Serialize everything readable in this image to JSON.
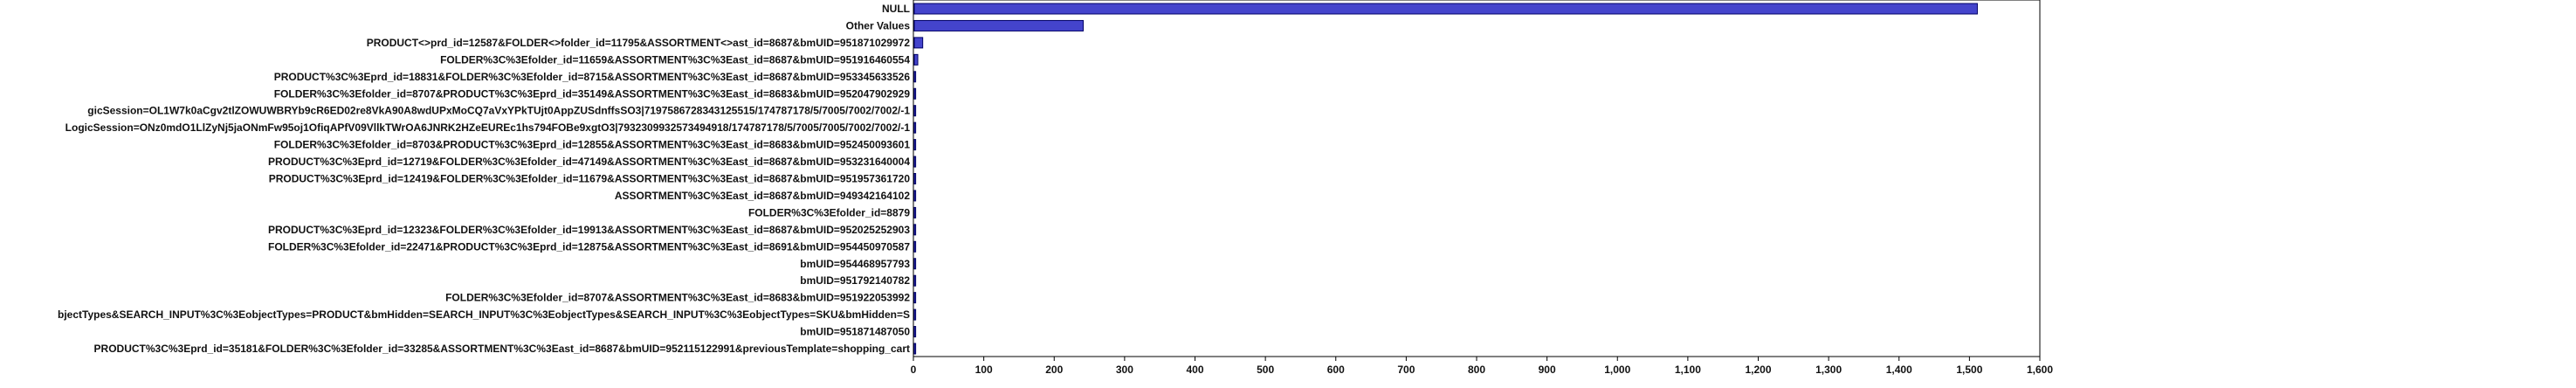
{
  "chart_data": {
    "type": "bar",
    "orientation": "horizontal",
    "title": "",
    "xlabel": "",
    "ylabel": "",
    "xlim": [
      0,
      1600
    ],
    "x_ticks": [
      0,
      100,
      200,
      300,
      400,
      500,
      600,
      700,
      800,
      900,
      1000,
      1100,
      1200,
      1300,
      1400,
      1500,
      1600
    ],
    "x_tick_labels": [
      "0",
      "100",
      "200",
      "300",
      "400",
      "500",
      "600",
      "700",
      "800",
      "900",
      "1,000",
      "1,100",
      "1,200",
      "1,300",
      "1,400",
      "1,500",
      "1,600"
    ],
    "grid": false,
    "legend": "none",
    "bar_color": "#4444cc",
    "bar_edge_color": "#000066",
    "categories": [
      "NULL",
      "Other Values",
      "PRODUCT<>prd_id=12587&FOLDER<>folder_id=11795&ASSORTMENT<>ast_id=8687&bmUID=951871029972",
      "FOLDER%3C%3Efolder_id=11659&ASSORTMENT%3C%3East_id=8687&bmUID=951916460554",
      "PRODUCT%3C%3Eprd_id=18831&FOLDER%3C%3Efolder_id=8715&ASSORTMENT%3C%3East_id=8687&bmUID=953345633526",
      "FOLDER%3C%3Efolder_id=8707&PRODUCT%3C%3Eprd_id=35149&ASSORTMENT%3C%3East_id=8683&bmUID=952047902929",
      "gicSession=OL1W7k0aCgv2tlZOWUWBRYb9cR6ED02re8VkA90A8wdUPxMoCQ7aVxYPkTUjt0AppZUSdnffsSO3|7197586728343125515/174787178/5/7005/7002/7002/-1",
      "LogicSession=ONz0mdO1LlZyNj5jaONmFw95oj1OfiqAPfV09VllkTWrOA6JNRK2HZeEUREc1hs794FOBe9xgtO3|7932309932573494918/174787178/5/7005/7005/7002/7002/-1",
      "FOLDER%3C%3Efolder_id=8703&PRODUCT%3C%3Eprd_id=12855&ASSORTMENT%3C%3East_id=8683&bmUID=952450093601",
      "PRODUCT%3C%3Eprd_id=12719&FOLDER%3C%3Efolder_id=47149&ASSORTMENT%3C%3East_id=8687&bmUID=953231640004",
      "PRODUCT%3C%3Eprd_id=12419&FOLDER%3C%3Efolder_id=11679&ASSORTMENT%3C%3East_id=8687&bmUID=951957361720",
      "ASSORTMENT%3C%3East_id=8687&bmUID=949342164102",
      "FOLDER%3C%3Efolder_id=8879",
      "PRODUCT%3C%3Eprd_id=12323&FOLDER%3C%3Efolder_id=19913&ASSORTMENT%3C%3East_id=8687&bmUID=952025252903",
      "FOLDER%3C%3Efolder_id=22471&PRODUCT%3C%3Eprd_id=12875&ASSORTMENT%3C%3East_id=8691&bmUID=954450970587",
      "bmUID=954468957793",
      "bmUID=951792140782",
      "FOLDER%3C%3Efolder_id=8707&ASSORTMENT%3C%3East_id=8683&bmUID=951922053992",
      "bjectTypes&SEARCH_INPUT%3C%3EobjectTypes=PRODUCT&bmHidden=SEARCH_INPUT%3C%3EobjectTypes&SEARCH_INPUT%3C%3EobjectTypes=SKU&bmHidden=S",
      "bmUID=951871487050",
      "PRODUCT%3C%3Eprd_id=35181&FOLDER%3C%3Efolder_id=33285&ASSORTMENT%3C%3East_id=8687&bmUID=952115122991&previousTemplate=shopping_cart"
    ],
    "values": [
      1510,
      240,
      12,
      5,
      2,
      2,
      2,
      2,
      2,
      2,
      2,
      2,
      2,
      2,
      2,
      2,
      2,
      2,
      2,
      2,
      2
    ]
  }
}
